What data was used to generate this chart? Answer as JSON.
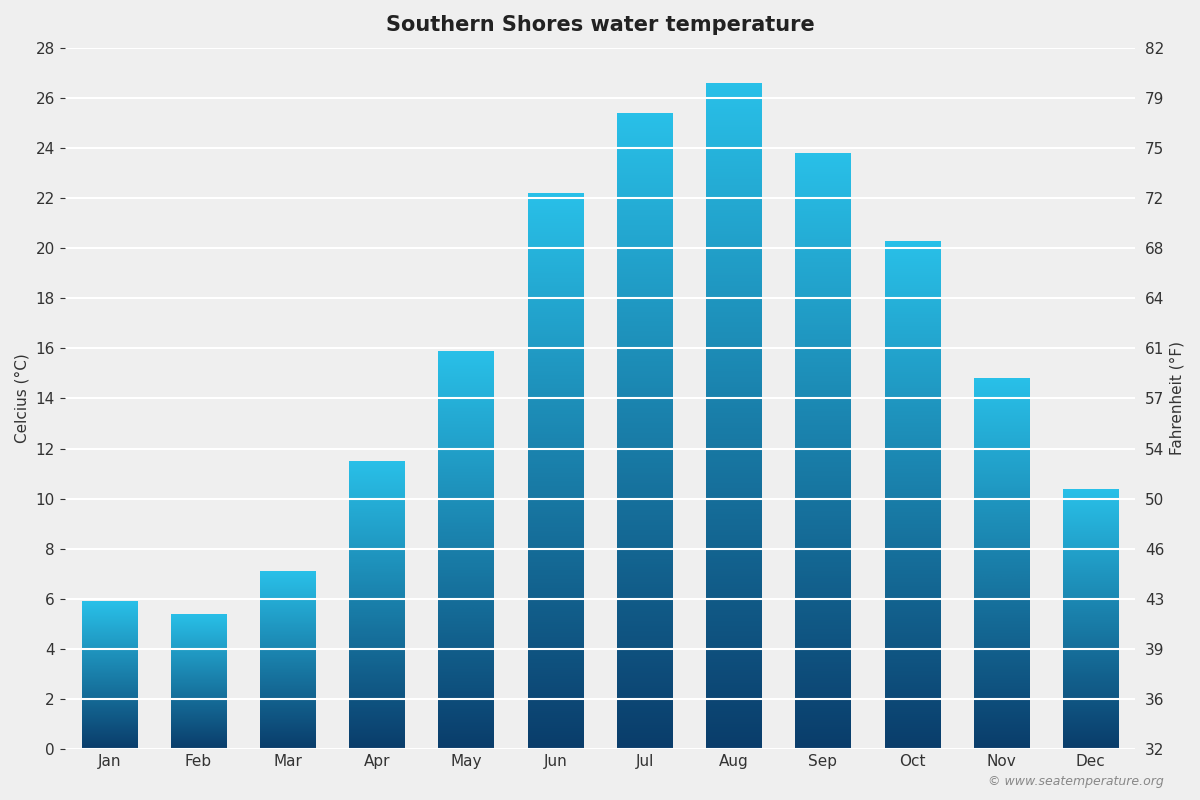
{
  "title": "Southern Shores water temperature",
  "months": [
    "Jan",
    "Feb",
    "Mar",
    "Apr",
    "May",
    "Jun",
    "Jul",
    "Aug",
    "Sep",
    "Oct",
    "Nov",
    "Dec"
  ],
  "values_c": [
    5.9,
    5.4,
    7.1,
    11.5,
    15.9,
    22.2,
    25.4,
    26.6,
    23.8,
    20.3,
    14.8,
    10.4
  ],
  "ylabel_left": "Celcius (°C)",
  "ylabel_right": "Fahrenheit (°F)",
  "ylim_left": [
    0,
    28
  ],
  "yticks_left": [
    0,
    2,
    4,
    6,
    8,
    10,
    12,
    14,
    16,
    18,
    20,
    22,
    24,
    26,
    28
  ],
  "yticks_right": [
    32,
    36,
    39,
    43,
    46,
    50,
    54,
    57,
    61,
    64,
    68,
    72,
    75,
    79,
    82
  ],
  "color_bottom": "#0a3d6b",
  "color_top": "#29c0e8",
  "background_color": "#efefef",
  "grid_color": "#ffffff",
  "title_fontsize": 15,
  "axis_label_fontsize": 11,
  "tick_fontsize": 11,
  "bar_width": 0.62,
  "watermark": "© www.seatemperature.org"
}
